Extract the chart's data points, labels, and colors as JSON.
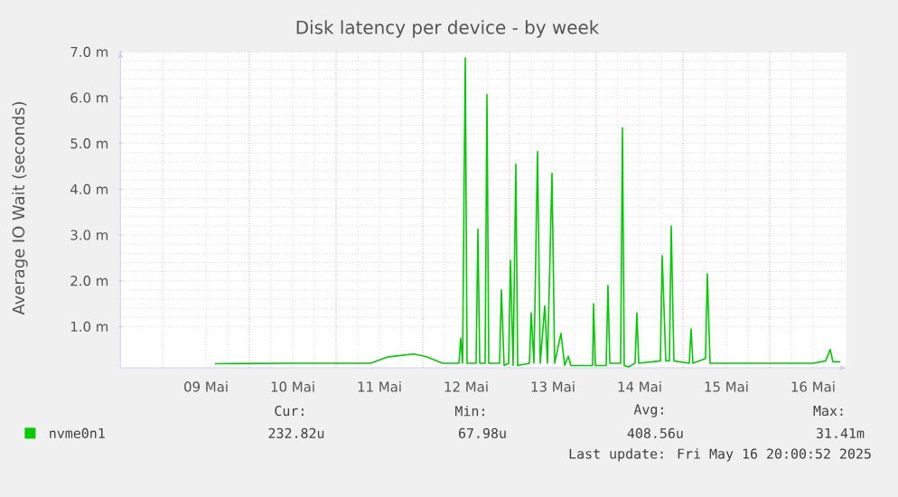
{
  "chart_data": {
    "type": "line",
    "title": "Disk latency per device - by week",
    "ylabel": "Average IO Wait (seconds)",
    "xlim": [
      "2025-05-08T12:20",
      "2025-05-16T21:10"
    ],
    "xticks": [
      {
        "value": "2025-05-09T12:00",
        "label": "09 Mai"
      },
      {
        "value": "2025-05-10T12:00",
        "label": "10 Mai"
      },
      {
        "value": "2025-05-11T12:00",
        "label": "11 Mai"
      },
      {
        "value": "2025-05-12T12:00",
        "label": "12 Mai"
      },
      {
        "value": "2025-05-13T12:00",
        "label": "13 Mai"
      },
      {
        "value": "2025-05-14T12:00",
        "label": "14 Mai"
      },
      {
        "value": "2025-05-15T12:00",
        "label": "15 Mai"
      },
      {
        "value": "2025-05-16T12:00",
        "label": "16 Mai"
      },
      {
        "value": "2025-05-09T00:00",
        "label": null
      },
      {
        "value": "2025-05-10T00:00",
        "label": null
      },
      {
        "value": "2025-05-11T00:00",
        "label": null
      },
      {
        "value": "2025-05-12T00:00",
        "label": null
      },
      {
        "value": "2025-05-13T00:00",
        "label": null
      },
      {
        "value": "2025-05-14T00:00",
        "label": null
      },
      {
        "value": "2025-05-15T00:00",
        "label": null
      },
      {
        "value": "2025-05-16T00:00",
        "label": null
      }
    ],
    "ylim": [
      0.1,
      7
    ],
    "yticks": [
      {
        "value": 1,
        "label": "1.0 m"
      },
      {
        "value": 2,
        "label": "2.0 m"
      },
      {
        "value": 3,
        "label": "3.0 m"
      },
      {
        "value": 4,
        "label": "4.0 m"
      },
      {
        "value": 5,
        "label": "5.0 m"
      },
      {
        "value": 6,
        "label": "6.0 m"
      },
      {
        "value": 7,
        "label": "7.0 m"
      }
    ],
    "grid": true,
    "legend": "bottom",
    "series": [
      {
        "name": "nvme0n1",
        "color": "#00cc00",
        "x": [
          "2025-05-09T14:30",
          "2025-05-10T11:00",
          "2025-05-11T09:30",
          "2025-05-11T14:30",
          "2025-05-11T21:30",
          "2025-05-12T01:00",
          "2025-05-12T05:30",
          "2025-05-12T10:00",
          "2025-05-12T10:30",
          "2025-05-12T11:00",
          "2025-05-12T11:45",
          "2025-05-12T12:15",
          "2025-05-12T14:45",
          "2025-05-12T15:15",
          "2025-05-12T15:45",
          "2025-05-12T17:15",
          "2025-05-12T17:45",
          "2025-05-12T18:15",
          "2025-05-12T21:15",
          "2025-05-12T21:45",
          "2025-05-12T22:30",
          "2025-05-12T23:45",
          "2025-05-13T00:15",
          "2025-05-13T01:00",
          "2025-05-13T01:45",
          "2025-05-13T02:15",
          "2025-05-13T05:30",
          "2025-05-13T06:00",
          "2025-05-13T06:45",
          "2025-05-13T07:45",
          "2025-05-13T08:30",
          "2025-05-13T09:45",
          "2025-05-13T10:30",
          "2025-05-13T11:45",
          "2025-05-13T12:30",
          "2025-05-13T14:15",
          "2025-05-13T15:15",
          "2025-05-13T16:15",
          "2025-05-13T17:00",
          "2025-05-13T23:00",
          "2025-05-13T23:15",
          "2025-05-13T23:45",
          "2025-05-14T02:45",
          "2025-05-14T03:15",
          "2025-05-14T03:45",
          "2025-05-14T06:45",
          "2025-05-14T07:15",
          "2025-05-14T07:45",
          "2025-05-14T09:00",
          "2025-05-14T10:45",
          "2025-05-14T11:15",
          "2025-05-14T11:45",
          "2025-05-14T17:45",
          "2025-05-14T18:15",
          "2025-05-14T19:15",
          "2025-05-14T20:15",
          "2025-05-14T20:45",
          "2025-05-14T21:30",
          "2025-05-15T01:45",
          "2025-05-15T02:15",
          "2025-05-15T02:45",
          "2025-05-15T06:15",
          "2025-05-15T06:45",
          "2025-05-15T07:30",
          "2025-05-15T21:00",
          "2025-05-16T12:00",
          "2025-05-16T15:30",
          "2025-05-16T16:45",
          "2025-05-16T17:30",
          "2025-05-16T19:30"
        ],
        "values": [
          0.19,
          0.2,
          0.2,
          0.34,
          0.4,
          0.34,
          0.2,
          0.2,
          0.74,
          0.2,
          6.87,
          0.2,
          0.2,
          3.13,
          0.2,
          0.2,
          6.07,
          0.2,
          0.2,
          1.8,
          0.15,
          0.2,
          2.45,
          0.15,
          4.55,
          0.15,
          0.2,
          1.3,
          0.2,
          4.82,
          0.2,
          1.45,
          0.2,
          4.35,
          0.2,
          0.85,
          0.15,
          0.35,
          0.15,
          0.15,
          1.5,
          0.15,
          0.15,
          1.9,
          0.2,
          0.2,
          5.34,
          0.15,
          0.12,
          0.2,
          1.3,
          0.2,
          0.25,
          2.55,
          0.25,
          0.25,
          3.2,
          0.25,
          0.2,
          0.95,
          0.2,
          0.3,
          2.15,
          0.2,
          0.2,
          0.2,
          0.25,
          0.5,
          0.23,
          0.23
        ]
      }
    ],
    "annotations": [
      "Cur:",
      "232.82u",
      "Min:",
      "67.98u",
      "Avg:",
      "408.56u",
      "Max:",
      "31.41m",
      "Last update: Fri May 16 20:00:52 2025"
    ]
  }
}
